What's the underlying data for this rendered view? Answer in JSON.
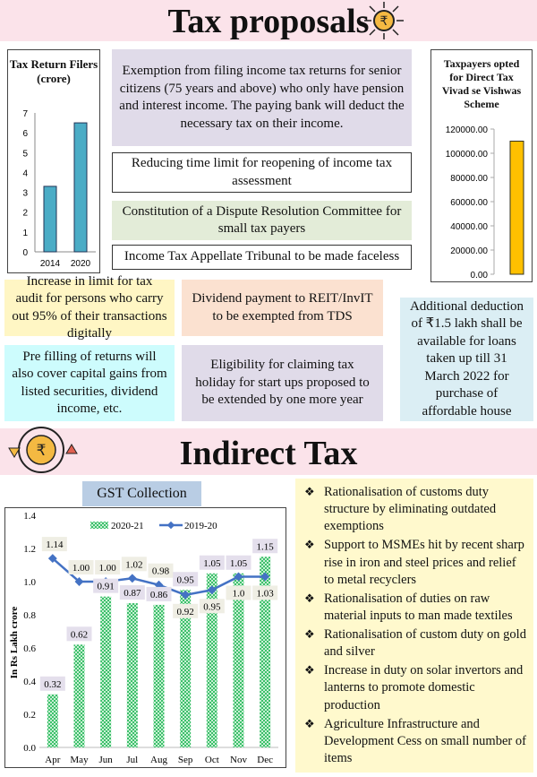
{
  "header1": {
    "title": "Tax proposals",
    "icon": "rupee-arrows-icon"
  },
  "boxes_top": [
    "Exemption from filing income tax returns for senior citizens (75 years and above) who only have pension and interest income. The paying bank will deduct the necessary tax on their income.",
    "Reducing time limit for reopening of income tax assessment",
    "Constitution of a Dispute Resolution Committee for small tax payers",
    "Income Tax Appellate Tribunal to be made faceless"
  ],
  "boxes_mid": [
    "Increase in limit for tax audit for persons who carry out 95% of their transactions digitally",
    "Dividend payment to REIT/InvIT to be exempted from TDS",
    "Additional deduction of ₹1.5 lakh shall be available for loans taken up till 31 March 2022 for purchase of affordable house",
    "Pre filling of returns will also cover capital gains from listed securities, dividend income, etc.",
    "Eligibility for claiming tax holiday for start ups proposed to be extended by one more year"
  ],
  "header2": {
    "title": "Indirect Tax",
    "icon": "rupee-cycle-icon"
  },
  "gst_title": "GST Collection",
  "indirect_points": [
    "Rationalisation of customs duty structure by eliminating outdated exemptions",
    "Support to MSMEs hit by recent sharp rise in iron and steel prices and relief to metal recyclers",
    "Rationalisation of duties on raw material inputs to man made textiles",
    "Rationalisation of custom duty on gold and silver",
    "Increase in duty on solar invertors and lanterns to promote domestic production",
    "Agriculture Infrastructure and Development Cess on small number of items"
  ],
  "bullet": "❖",
  "chart_data": [
    {
      "type": "bar",
      "title": "Tax Return Filers (crore)",
      "categories": [
        "2014",
        "2020"
      ],
      "values": [
        3.3,
        6.5
      ],
      "ylim": [
        0,
        7
      ],
      "yticks": [
        "0",
        "1",
        "2",
        "3",
        "4",
        "5",
        "6",
        "7"
      ],
      "color": "#4bacc6"
    },
    {
      "type": "bar",
      "title": "Taxpayers opted for Direct Tax Vivad se Vishwas Scheme",
      "categories": [
        ""
      ],
      "values": [
        110000
      ],
      "ylim": [
        0,
        120000
      ],
      "yticks": [
        "0.00",
        "20000.00",
        "40000.00",
        "60000.00",
        "80000.00",
        "100000.00",
        "120000.00"
      ],
      "color": "#ffc000"
    },
    {
      "type": "bar+line",
      "title": "GST Collection",
      "ylabel": "In Rs Lakh crore",
      "ylim": [
        0,
        1.4
      ],
      "yticks": [
        "0.0",
        "0.2",
        "0.4",
        "0.6",
        "0.8",
        "1.0",
        "1.2",
        "1.4"
      ],
      "categories": [
        "Apr",
        "May",
        "Jun",
        "Jul",
        "Aug",
        "Sep",
        "Oct",
        "Nov",
        "Dec"
      ],
      "series": [
        {
          "name": "2020-21",
          "type": "bar",
          "values": [
            0.32,
            0.62,
            0.91,
            0.87,
            0.86,
            0.95,
            1.05,
            1.05,
            1.15
          ],
          "labels": [
            "0.32",
            "0.62",
            "0.91",
            "0.87",
            "0.86",
            "0.95",
            "1.05",
            "1.05",
            "1.15"
          ],
          "color": "#3cbf6a"
        },
        {
          "name": "2019-20",
          "type": "line",
          "values": [
            1.14,
            1.0,
            1.0,
            1.02,
            0.98,
            0.92,
            0.95,
            1.03,
            1.03
          ],
          "labels": [
            "1.14",
            "1.00",
            "1.00",
            "1.02",
            "0.98",
            "0.92",
            "0.95",
            "1.0",
            "1.03"
          ],
          "color": "#4472c4"
        }
      ],
      "legend": "top"
    }
  ]
}
